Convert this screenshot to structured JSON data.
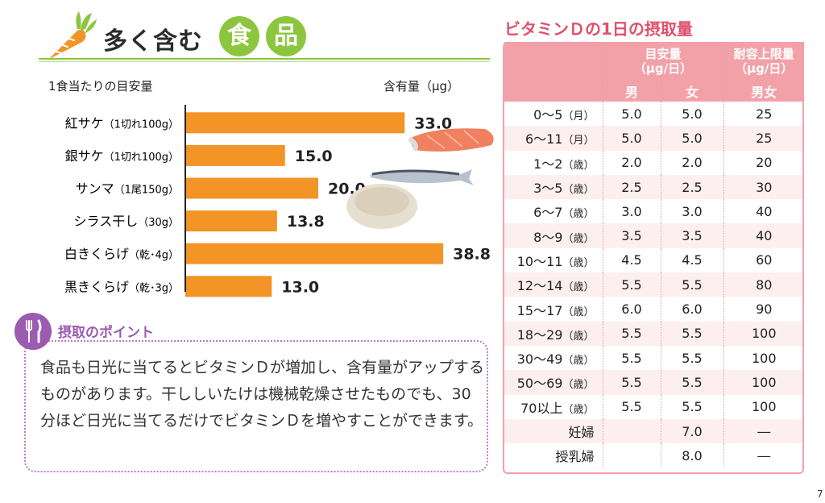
{
  "title": {
    "lead": "多く含む",
    "disc1": "食",
    "disc2": "品"
  },
  "chart_data": {
    "type": "bar",
    "orientation": "horizontal",
    "head_left": "1食当たりの目安量",
    "head_right": "含有量（μg）",
    "categories": [
      {
        "name": "紅サケ",
        "note": "（1切れ100g）"
      },
      {
        "name": "銀サケ",
        "note": "（1切れ100g）"
      },
      {
        "name": "サンマ",
        "note": "（1尾150g）"
      },
      {
        "name": "シラス干し",
        "note": "（30g）"
      },
      {
        "name": "白きくらげ",
        "note": "（乾･4g）"
      },
      {
        "name": "黒きくらげ",
        "note": "（乾･3g）"
      }
    ],
    "values": [
      33.0,
      15.0,
      20.0,
      13.8,
      38.8,
      13.0
    ],
    "value_labels": [
      "33.0",
      "15.0",
      "20.0",
      "13.8",
      "38.8",
      "13.0"
    ],
    "xlim": [
      0,
      40
    ],
    "bar_color": "#f39426",
    "grid": false
  },
  "point": {
    "title": "摂取のポイント",
    "text": "食品も日光に当てるとビタミンＤが増加し、含有量がアップするものがあります。干ししいたけは機械乾燥させたものでも、30分ほど日光に当てるだけでビタミンＤを増やすことができます。"
  },
  "table": {
    "title": "ビタミンＤの1日の摂取量",
    "group1": "目安量\n（μg/日）",
    "group2": "耐容上限量\n（μg/日）",
    "sub_male": "男",
    "sub_female": "女",
    "sub_both": "男女",
    "rows": [
      {
        "age": "0〜5",
        "unit": "（月）",
        "m": "5.0",
        "f": "5.0",
        "ul": "25"
      },
      {
        "age": "6〜11",
        "unit": "（月）",
        "m": "5.0",
        "f": "5.0",
        "ul": "25"
      },
      {
        "age": "1〜2",
        "unit": "（歳）",
        "m": "2.0",
        "f": "2.0",
        "ul": "20"
      },
      {
        "age": "3〜5",
        "unit": "（歳）",
        "m": "2.5",
        "f": "2.5",
        "ul": "30"
      },
      {
        "age": "6〜7",
        "unit": "（歳）",
        "m": "3.0",
        "f": "3.0",
        "ul": "40"
      },
      {
        "age": "8〜9",
        "unit": "（歳）",
        "m": "3.5",
        "f": "3.5",
        "ul": "40"
      },
      {
        "age": "10〜11",
        "unit": "（歳）",
        "m": "4.5",
        "f": "4.5",
        "ul": "60"
      },
      {
        "age": "12〜14",
        "unit": "（歳）",
        "m": "5.5",
        "f": "5.5",
        "ul": "80"
      },
      {
        "age": "15〜17",
        "unit": "（歳）",
        "m": "6.0",
        "f": "6.0",
        "ul": "90"
      },
      {
        "age": "18〜29",
        "unit": "（歳）",
        "m": "5.5",
        "f": "5.5",
        "ul": "100"
      },
      {
        "age": "30〜49",
        "unit": "（歳）",
        "m": "5.5",
        "f": "5.5",
        "ul": "100"
      },
      {
        "age": "50〜69",
        "unit": "（歳）",
        "m": "5.5",
        "f": "5.5",
        "ul": "100"
      },
      {
        "age": "70以上",
        "unit": "（歳）",
        "m": "5.5",
        "f": "5.5",
        "ul": "100"
      },
      {
        "age": "妊婦",
        "unit": "",
        "m": "",
        "f": "7.0",
        "ul": "―"
      },
      {
        "age": "授乳婦",
        "unit": "",
        "m": "",
        "f": "8.0",
        "ul": "―"
      }
    ]
  },
  "page_mark": "7",
  "icons": {
    "title": "carrot-icon",
    "point": "fork-knife-icon"
  }
}
